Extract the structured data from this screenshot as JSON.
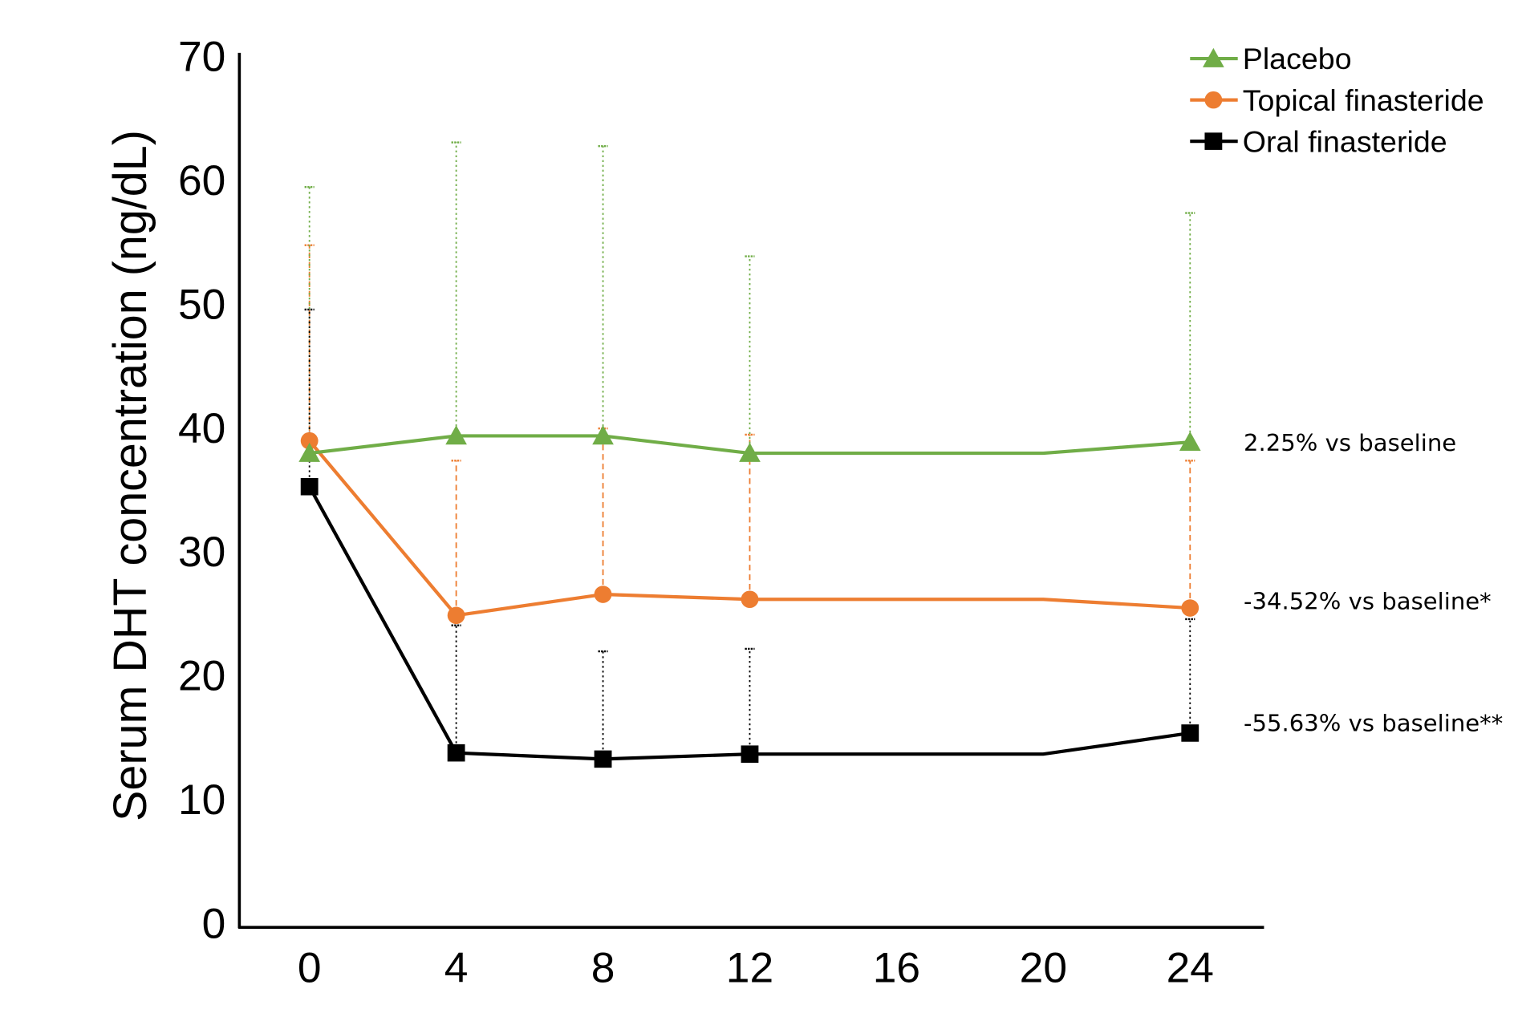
{
  "chart_data": {
    "type": "line",
    "title": "",
    "xlabel": "",
    "ylabel": "Serum DHT concentration (ng/dL)",
    "x": [
      0,
      4,
      8,
      12,
      16,
      20,
      24
    ],
    "xticks": [
      "0",
      "4",
      "8",
      "12",
      "16",
      "20",
      "24"
    ],
    "yticks": [
      "0",
      "10",
      "20",
      "30",
      "40",
      "50",
      "60",
      "70"
    ],
    "xlim": [
      0,
      24
    ],
    "ylim": [
      0,
      70
    ],
    "grid": false,
    "legend_position": "top-right",
    "series": [
      {
        "name": "Topical finasteride",
        "color": "#ED7D31",
        "marker": "circle",
        "values": [
          38.9,
          24.8,
          26.5,
          26.1,
          26.1,
          26.1,
          25.4
        ],
        "marker_shown": [
          true,
          true,
          true,
          true,
          false,
          false,
          true
        ],
        "error_upper": [
          54.7,
          37.3,
          39.9,
          39.4,
          null,
          null,
          37.3
        ],
        "annotation": "-34.52% vs baseline*"
      },
      {
        "name": "Placebo",
        "color": "#70AD47",
        "marker": "triangle",
        "values": [
          37.9,
          39.3,
          39.3,
          37.9,
          37.9,
          37.9,
          38.8
        ],
        "marker_shown": [
          true,
          true,
          true,
          true,
          false,
          false,
          true
        ],
        "error_upper": [
          59.4,
          63.0,
          62.7,
          53.8,
          null,
          null,
          57.3
        ],
        "annotation": "2.25% vs baseline"
      },
      {
        "name": "Oral finasteride",
        "color": "#000000",
        "marker": "square",
        "values": [
          35.2,
          13.7,
          13.2,
          13.6,
          13.6,
          13.6,
          15.3
        ],
        "marker_shown": [
          true,
          true,
          true,
          true,
          false,
          false,
          true
        ],
        "error_upper": [
          49.5,
          24.0,
          21.9,
          22.1,
          null,
          null,
          24.5
        ],
        "annotation": "-55.63% vs baseline**"
      }
    ]
  }
}
